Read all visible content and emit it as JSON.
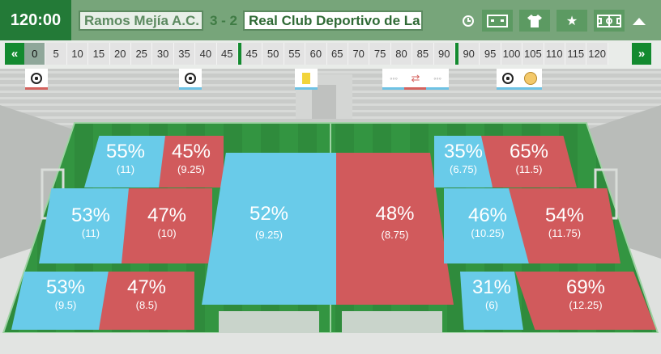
{
  "header": {
    "clock": "120:00",
    "home_team": "Ramos Mejía A.C.",
    "score": "3 - 2",
    "away_team": "Real Club Deportivo de La"
  },
  "timeline": {
    "prev": "«",
    "next": "»",
    "ticks": [
      "0",
      "5",
      "10",
      "15",
      "20",
      "25",
      "30",
      "35",
      "40",
      "45",
      "45",
      "50",
      "55",
      "60",
      "65",
      "70",
      "75",
      "80",
      "85",
      "90",
      "90",
      "95",
      "100",
      "105",
      "110",
      "115",
      "120"
    ]
  },
  "zones": [
    {
      "id": "home-def-top",
      "pct": "55%",
      "val": "(11)"
    },
    {
      "id": "away-def-top",
      "pct": "45%",
      "val": "(9.25)"
    },
    {
      "id": "home-def-mid",
      "pct": "53%",
      "val": "(11)"
    },
    {
      "id": "away-def-mid",
      "pct": "47%",
      "val": "(10)"
    },
    {
      "id": "home-def-bot",
      "pct": "53%",
      "val": "(9.5)"
    },
    {
      "id": "away-def-bot",
      "pct": "47%",
      "val": "(8.5)"
    },
    {
      "id": "home-center",
      "pct": "52%",
      "val": "(9.25)"
    },
    {
      "id": "away-center",
      "pct": "48%",
      "val": "(8.75)"
    },
    {
      "id": "home-att-top",
      "pct": "35%",
      "val": "(6.75)"
    },
    {
      "id": "away-att-top",
      "pct": "65%",
      "val": "(11.5)"
    },
    {
      "id": "home-att-mid",
      "pct": "46%",
      "val": "(10.25)"
    },
    {
      "id": "away-att-mid",
      "pct": "54%",
      "val": "(11.75)"
    },
    {
      "id": "home-att-bot",
      "pct": "31%",
      "val": "(6)"
    },
    {
      "id": "away-att-bot",
      "pct": "69%",
      "val": "(12.25)"
    }
  ],
  "colors": {
    "home": "#69cbe9",
    "away": "#d15a5c",
    "accent": "#138a2f"
  }
}
